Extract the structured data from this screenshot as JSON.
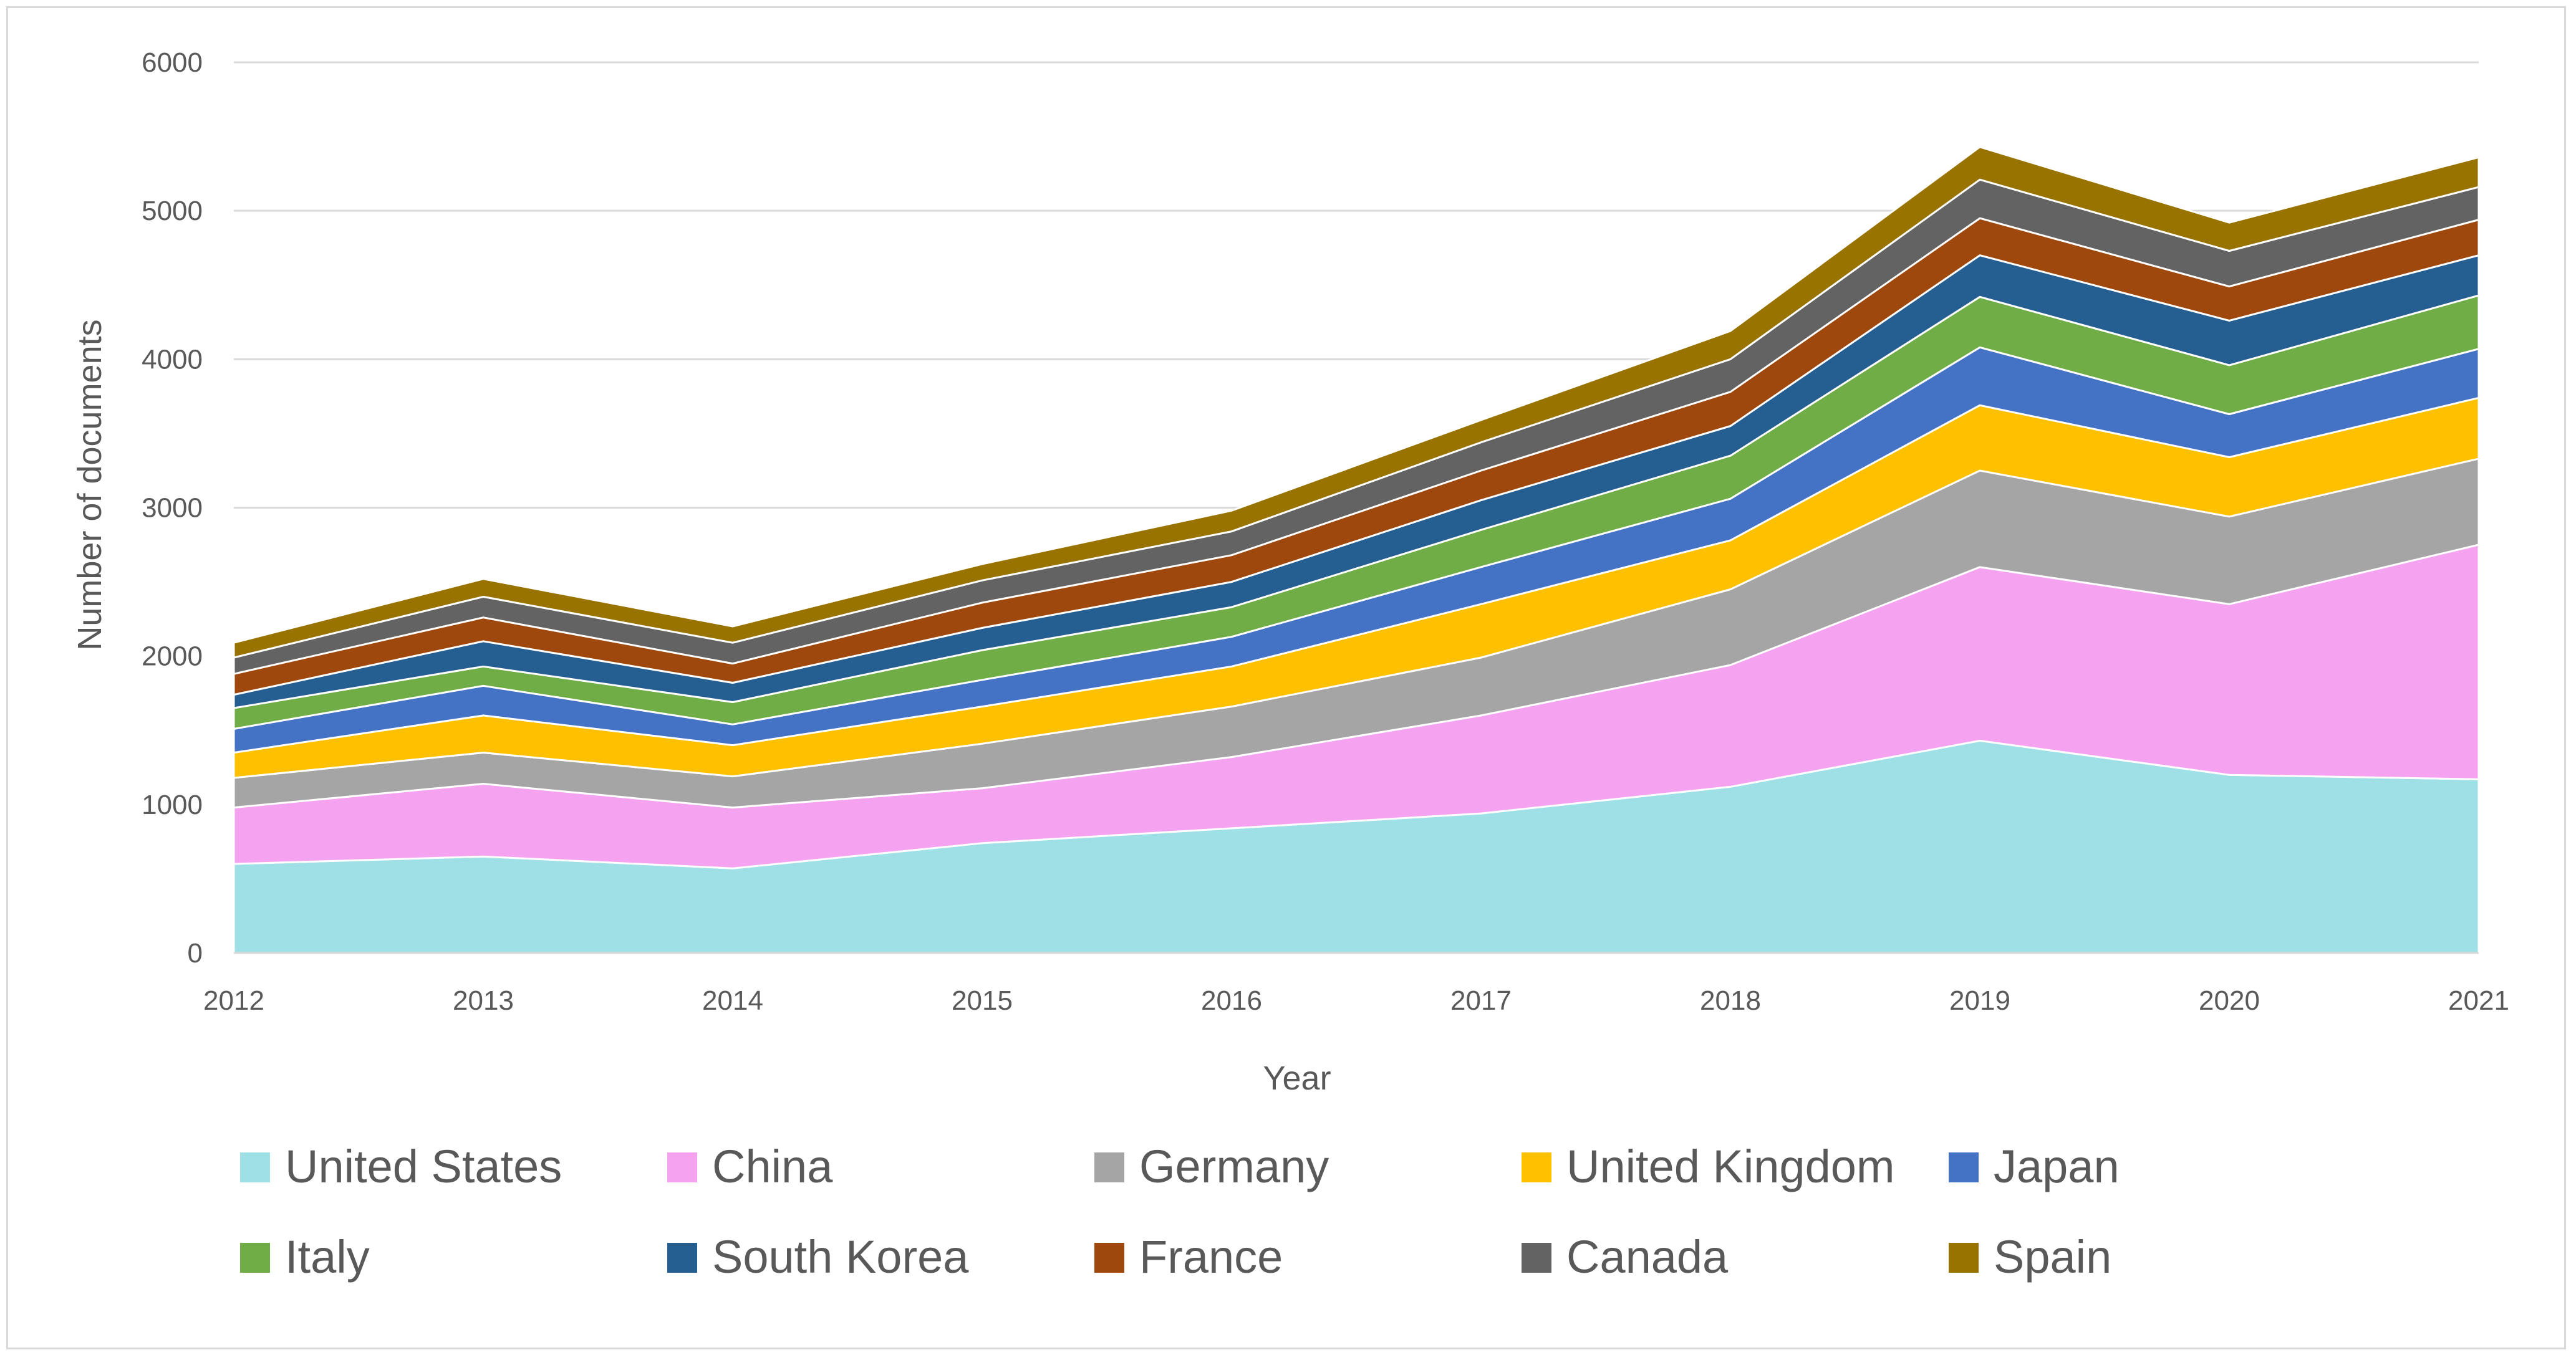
{
  "chart_data": {
    "type": "area",
    "stacked": true,
    "title": "",
    "xlabel": "Year",
    "ylabel": "Number of documents",
    "ylim": [
      0,
      6000
    ],
    "yticks": [
      0,
      1000,
      2000,
      3000,
      4000,
      5000,
      6000
    ],
    "grid": true,
    "legend_position": "bottom",
    "categories": [
      "2012",
      "2013",
      "2014",
      "2015",
      "2016",
      "2017",
      "2018",
      "2019",
      "2020",
      "2021"
    ],
    "series": [
      {
        "name": "United States",
        "color": "#9fdfe6",
        "values": [
          600,
          650,
          570,
          740,
          840,
          940,
          1120,
          1430,
          1200,
          1170
        ]
      },
      {
        "name": "China",
        "color": "#f5a3f0",
        "values": [
          380,
          490,
          410,
          370,
          480,
          660,
          820,
          1170,
          1150,
          1580
        ]
      },
      {
        "name": "Germany",
        "color": "#a5a5a5",
        "values": [
          200,
          210,
          210,
          300,
          340,
          390,
          510,
          650,
          590,
          580
        ]
      },
      {
        "name": "United Kingdom",
        "color": "#ffc000",
        "values": [
          170,
          250,
          210,
          250,
          270,
          360,
          330,
          440,
          400,
          410
        ]
      },
      {
        "name": "Japan",
        "color": "#4472c4",
        "values": [
          160,
          200,
          140,
          180,
          200,
          250,
          280,
          390,
          290,
          330
        ]
      },
      {
        "name": "Italy",
        "color": "#70ad47",
        "values": [
          140,
          130,
          150,
          200,
          200,
          250,
          290,
          340,
          330,
          360
        ]
      },
      {
        "name": "South Korea",
        "color": "#255e91",
        "values": [
          90,
          170,
          130,
          150,
          170,
          200,
          200,
          280,
          300,
          270
        ]
      },
      {
        "name": "France",
        "color": "#9e480e",
        "values": [
          140,
          160,
          130,
          170,
          180,
          200,
          230,
          250,
          230,
          240
        ]
      },
      {
        "name": "Canada",
        "color": "#636363",
        "values": [
          110,
          140,
          140,
          150,
          160,
          190,
          220,
          260,
          240,
          220
        ]
      },
      {
        "name": "Spain",
        "color": "#997300",
        "values": [
          100,
          120,
          110,
          110,
          140,
          150,
          190,
          220,
          190,
          200
        ]
      }
    ]
  }
}
